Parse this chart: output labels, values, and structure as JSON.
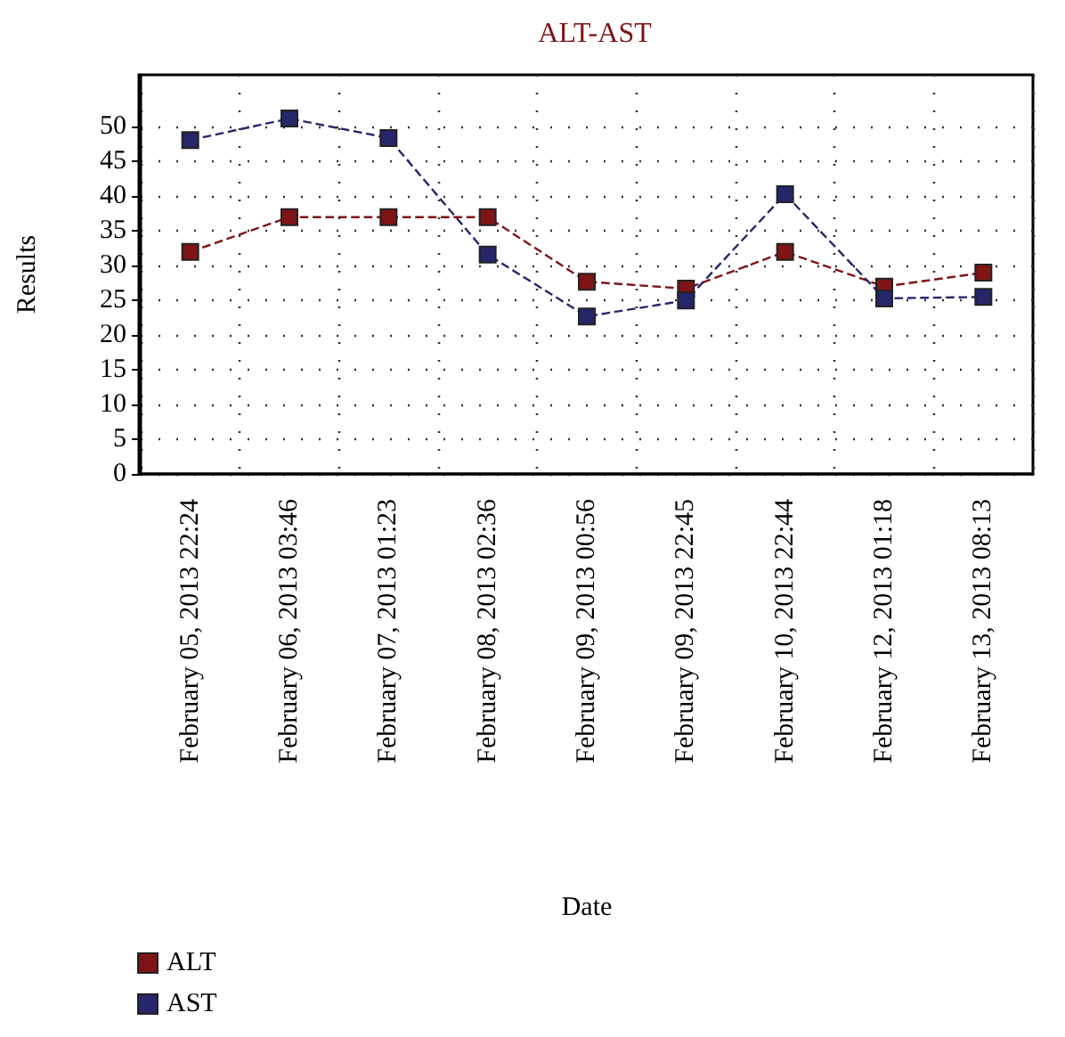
{
  "chart_data": {
    "type": "line",
    "title": "ALT-AST",
    "xlabel": "Date",
    "ylabel": "Results",
    "categories": [
      "February 05, 2013 22:24",
      "February 06, 2013 03:46",
      "February 07, 2013 01:23",
      "February 08, 2013 02:36",
      "February 09, 2013 00:56",
      "February 09, 2013 22:45",
      "February 10, 2013 22:44",
      "February 12, 2013 01:18",
      "February 13, 2013 08:13"
    ],
    "series": [
      {
        "name": "ALT",
        "color": "#7f1416",
        "values": [
          32,
          37,
          37,
          37,
          27.7,
          26.7,
          32,
          27,
          29
        ]
      },
      {
        "name": "AST",
        "color": "#26266a",
        "values": [
          48.1,
          51.2,
          48.4,
          31.6,
          22.7,
          25,
          40.3,
          25.3,
          25.5
        ]
      }
    ],
    "ylim": [
      0,
      57.5
    ],
    "yticks": [
      0,
      5,
      10,
      15,
      20,
      25,
      30,
      35,
      40,
      45,
      50
    ],
    "grid": true,
    "legend": "bottom left",
    "marker": "square",
    "line_style": "dashed"
  }
}
